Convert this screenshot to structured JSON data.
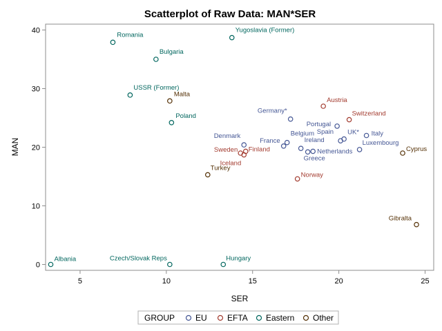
{
  "chart_data": {
    "type": "scatter",
    "title": "Scatterplot of Raw Data: MAN*SER",
    "xlabel": "SER",
    "ylabel": "MAN",
    "xlim": [
      3,
      25.5
    ],
    "ylim": [
      -1,
      41
    ],
    "xticks": [
      5,
      10,
      15,
      20,
      25
    ],
    "yticks": [
      0,
      10,
      20,
      30,
      40
    ],
    "grid": false,
    "legend": {
      "title": "GROUP",
      "placement": "bottom",
      "entries": [
        "EU",
        "EFTA",
        "Eastern",
        "Other"
      ]
    },
    "colors": {
      "EU": "#445694",
      "EFTA": "#A23A2E",
      "Eastern": "#01665E",
      "Other": "#543005"
    },
    "points": [
      {
        "label": "Romania",
        "x": 6.9,
        "y": 37.9,
        "group": "Eastern"
      },
      {
        "label": "Yugoslavia (Former)",
        "x": 13.8,
        "y": 38.7,
        "group": "Eastern"
      },
      {
        "label": "Bulgaria",
        "x": 9.4,
        "y": 35.0,
        "group": "Eastern"
      },
      {
        "label": "USSR (Former)",
        "x": 7.9,
        "y": 28.9,
        "group": "Eastern"
      },
      {
        "label": "Malta",
        "x": 10.2,
        "y": 27.9,
        "group": "Other"
      },
      {
        "label": "Poland",
        "x": 10.3,
        "y": 24.2,
        "group": "Eastern"
      },
      {
        "label": "Austria",
        "x": 19.1,
        "y": 27.0,
        "group": "EFTA"
      },
      {
        "label": "Germany*",
        "x": 17.2,
        "y": 24.8,
        "group": "EU"
      },
      {
        "label": "Switzerland",
        "x": 20.6,
        "y": 24.7,
        "group": "EFTA"
      },
      {
        "label": "Portugal",
        "x": 19.9,
        "y": 23.6,
        "group": "EU"
      },
      {
        "label": "Spain",
        "x": 20.1,
        "y": 21.1,
        "group": "EU"
      },
      {
        "label": "UK*",
        "x": 20.3,
        "y": 21.4,
        "group": "EU"
      },
      {
        "label": "Italy",
        "x": 21.6,
        "y": 22.0,
        "group": "EU"
      },
      {
        "label": "Luxembourg",
        "x": 21.2,
        "y": 19.6,
        "group": "EU"
      },
      {
        "label": "Cyprus",
        "x": 23.7,
        "y": 19.0,
        "group": "Other"
      },
      {
        "label": "Denmark",
        "x": 14.5,
        "y": 20.4,
        "group": "EU"
      },
      {
        "label": "France",
        "x": 16.8,
        "y": 20.2,
        "group": "EU"
      },
      {
        "label": "Belgium",
        "x": 17.0,
        "y": 20.8,
        "group": "EU"
      },
      {
        "label": "Ireland",
        "x": 17.8,
        "y": 19.8,
        "group": "EU"
      },
      {
        "label": "Netherlands",
        "x": 18.5,
        "y": 19.3,
        "group": "EU"
      },
      {
        "label": "Greece",
        "x": 18.2,
        "y": 19.2,
        "group": "EU"
      },
      {
        "label": "Sweden",
        "x": 14.3,
        "y": 19.0,
        "group": "EFTA"
      },
      {
        "label": "Finland",
        "x": 14.6,
        "y": 19.3,
        "group": "EFTA"
      },
      {
        "label": "Iceland",
        "x": 14.5,
        "y": 18.7,
        "group": "EFTA"
      },
      {
        "label": "Turkey",
        "x": 12.4,
        "y": 15.3,
        "group": "Other"
      },
      {
        "label": "Norway",
        "x": 17.6,
        "y": 14.6,
        "group": "EFTA"
      },
      {
        "label": "Gibralta",
        "x": 24.5,
        "y": 6.8,
        "group": "Other"
      },
      {
        "label": "Albania",
        "x": 3.3,
        "y": 0.0,
        "group": "Eastern"
      },
      {
        "label": "Czech/Slovak Reps",
        "x": 10.2,
        "y": 0.0,
        "group": "Eastern"
      },
      {
        "label": "Hungary",
        "x": 13.3,
        "y": 0.0,
        "group": "Eastern"
      }
    ]
  }
}
